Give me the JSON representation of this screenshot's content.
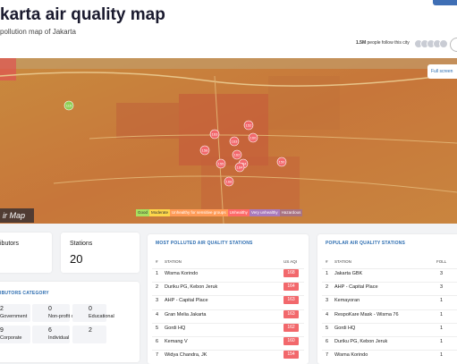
{
  "header": {
    "title": "karta air quality map",
    "subtitle": "pollution map of Jakarta",
    "followers": "1.5M",
    "followers_text": "people follow this city"
  },
  "map": {
    "full_screen": "Full screen",
    "logo": "ir Map",
    "legend": [
      "Good",
      "Moderate",
      "Unhealthy for sensitive groups",
      "Unhealthy",
      "Very unhealthy",
      "Hazardous"
    ],
    "markers": [
      "115",
      "154",
      "163",
      "163",
      "160",
      "162",
      "164",
      "168",
      "150",
      "155",
      "158",
      "152"
    ]
  },
  "stats": {
    "contributors_label": "ibutors",
    "stations_label": "Stations",
    "stations_value": "20"
  },
  "contributors_category": {
    "title": "IBUTORS CATEGORY",
    "items": [
      {
        "count": "2",
        "label": "Government"
      },
      {
        "count": "0",
        "label": "Non-profit organization"
      },
      {
        "count": "0",
        "label": "Educational"
      },
      {
        "count": "9",
        "label": "Corporate"
      },
      {
        "count": "6",
        "label": "Individual"
      },
      {
        "count": "2",
        "label": ""
      }
    ]
  },
  "most_polluted": {
    "title": "MOST POLLUTED AIR QUALITY STATIONS",
    "columns": [
      "#",
      "STATION",
      "US AQI"
    ],
    "rows": [
      [
        "1",
        "Wisma Korindo",
        "168"
      ],
      [
        "2",
        "Duriku PG, Kebon Jeruk",
        "164"
      ],
      [
        "3",
        "AHP - Capital Place",
        "163"
      ],
      [
        "4",
        "Gran Melia Jakarta",
        "163"
      ],
      [
        "5",
        "Gordi HQ",
        "162"
      ],
      [
        "6",
        "Kemang V",
        "160"
      ],
      [
        "7",
        "Widya Chandra, JK",
        "154"
      ]
    ]
  },
  "popular": {
    "title": "POPULAR AIR QUALITY STATIONS",
    "columns": [
      "#",
      "STATION",
      "FOLL"
    ],
    "rows": [
      [
        "1",
        "Jakarta GBK",
        "3"
      ],
      [
        "2",
        "AHP - Capital Place",
        "3"
      ],
      [
        "3",
        "Kemayoran",
        "1"
      ],
      [
        "4",
        "RespoKare Mask - Wisma 76",
        "1"
      ],
      [
        "5",
        "Gordi HQ",
        "1"
      ],
      [
        "6",
        "Duriku PG, Kebon Jeruk",
        "1"
      ],
      [
        "7",
        "Wisma Korindo",
        "1"
      ]
    ]
  }
}
